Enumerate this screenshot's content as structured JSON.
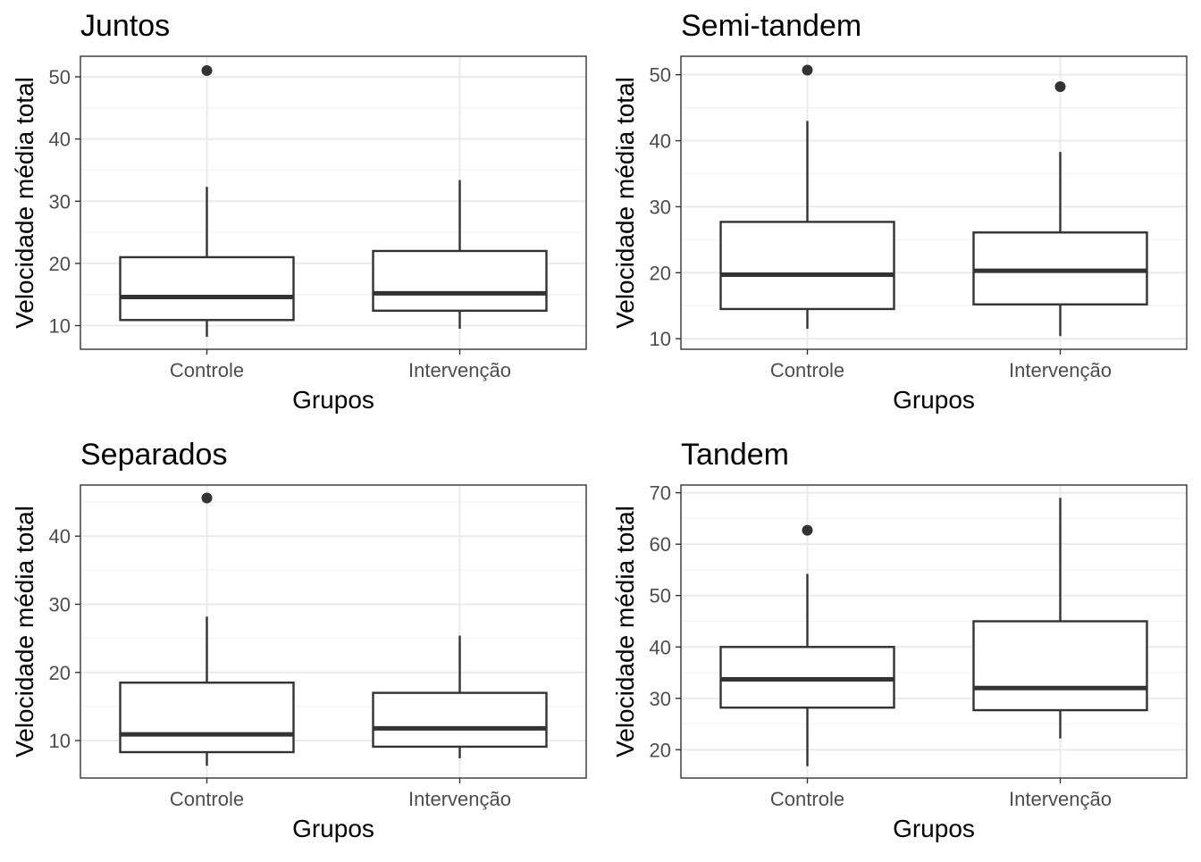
{
  "chart_data": [
    {
      "type": "boxplot",
      "title": "Juntos",
      "xlabel": "Grupos",
      "ylabel": "Velocidade média total",
      "categories": [
        "Controle",
        "Intervenção"
      ],
      "ylim": [
        6.2,
        53.3
      ],
      "yticks": [
        10,
        20,
        30,
        40,
        50
      ],
      "grid": true,
      "boxes": [
        {
          "category": "Controle",
          "whisker_low": 8.2,
          "q1": 10.9,
          "median": 14.6,
          "q3": 21.0,
          "whisker_high": 32.3,
          "outliers": [
            51.0
          ]
        },
        {
          "category": "Intervenção",
          "whisker_low": 9.5,
          "q1": 12.4,
          "median": 15.2,
          "q3": 22.0,
          "whisker_high": 33.4,
          "outliers": []
        }
      ]
    },
    {
      "type": "boxplot",
      "title": "Semi-tandem",
      "xlabel": "Grupos",
      "ylabel": "Velocidade média total",
      "categories": [
        "Controle",
        "Intervenção"
      ],
      "ylim": [
        8.4,
        52.8
      ],
      "yticks": [
        10,
        20,
        30,
        40,
        50
      ],
      "grid": true,
      "boxes": [
        {
          "category": "Controle",
          "whisker_low": 11.5,
          "q1": 14.5,
          "median": 19.7,
          "q3": 27.7,
          "whisker_high": 43.0,
          "outliers": [
            50.7
          ]
        },
        {
          "category": "Intervenção",
          "whisker_low": 10.4,
          "q1": 15.2,
          "median": 20.3,
          "q3": 26.1,
          "whisker_high": 38.3,
          "outliers": [
            48.2
          ]
        }
      ]
    },
    {
      "type": "boxplot",
      "title": "Separados",
      "xlabel": "Grupos",
      "ylabel": "Velocidade média total",
      "categories": [
        "Controle",
        "Intervenção"
      ],
      "ylim": [
        4.5,
        47.5
      ],
      "yticks": [
        10,
        20,
        30,
        40
      ],
      "grid": true,
      "boxes": [
        {
          "category": "Controle",
          "whisker_low": 6.3,
          "q1": 8.3,
          "median": 10.9,
          "q3": 18.5,
          "whisker_high": 28.2,
          "outliers": [
            45.6
          ]
        },
        {
          "category": "Intervenção",
          "whisker_low": 7.4,
          "q1": 9.1,
          "median": 11.8,
          "q3": 17.0,
          "whisker_high": 25.4,
          "outliers": []
        }
      ]
    },
    {
      "type": "boxplot",
      "title": "Tandem",
      "xlabel": "Grupos",
      "ylabel": "Velocidade média total",
      "categories": [
        "Controle",
        "Intervenção"
      ],
      "ylim": [
        14.5,
        71.5
      ],
      "yticks": [
        20,
        30,
        40,
        50,
        60,
        70
      ],
      "grid": true,
      "boxes": [
        {
          "category": "Controle",
          "whisker_low": 16.8,
          "q1": 28.2,
          "median": 33.7,
          "q3": 40.0,
          "whisker_high": 54.2,
          "outliers": [
            62.7
          ]
        },
        {
          "category": "Intervenção",
          "whisker_low": 22.2,
          "q1": 27.7,
          "median": 32.0,
          "q3": 45.0,
          "whisker_high": 69.0,
          "outliers": []
        }
      ]
    }
  ]
}
